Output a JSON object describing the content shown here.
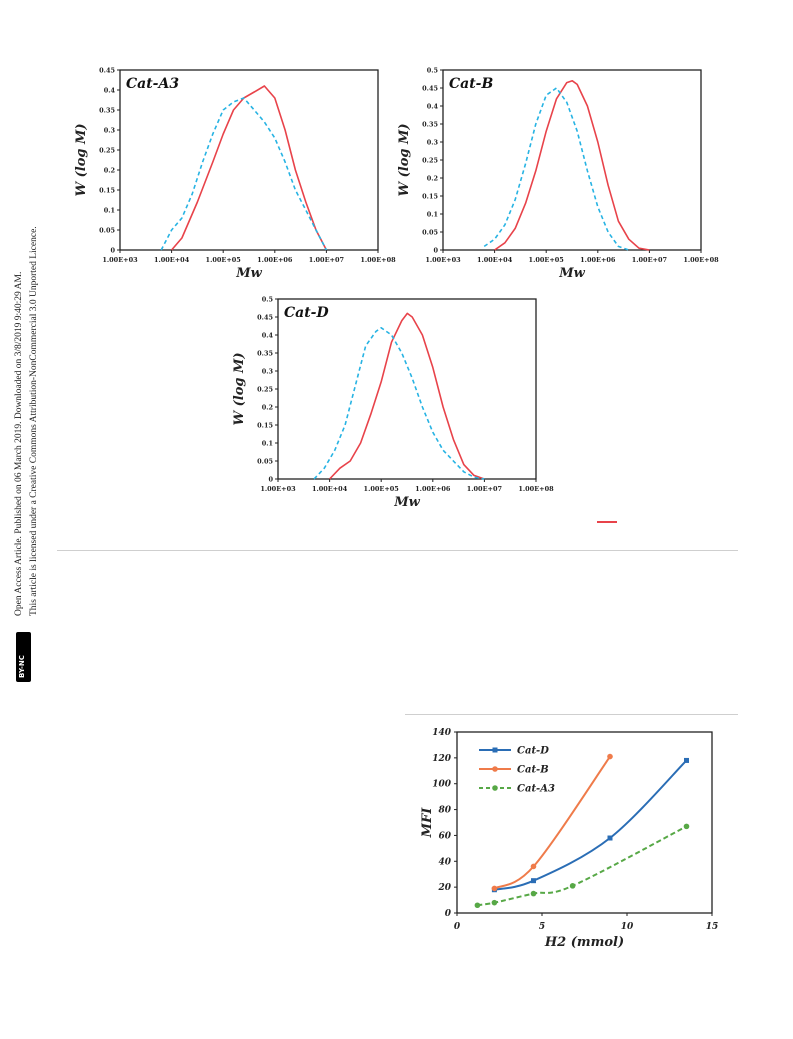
{
  "sidebar": {
    "line1": "Open Access Article. Published on 06 March 2019. Downloaded on 3/8/2019 9:40:29 AM.",
    "line2": "This article is licensed under a Creative Commons Attribution-NonCommercial 3.0 Unported Licence.",
    "badge": "BY-NC"
  },
  "colors": {
    "solid": "#e8434a",
    "dashed": "#27b3e3",
    "catD": "#2a6db5",
    "catB": "#ef7b4a",
    "catA3": "#57a846"
  },
  "chart_data": [
    {
      "type": "line",
      "title": "Cat-A3",
      "xlabel": "Mw",
      "ylabel": "W (log M)",
      "x_scale": "log",
      "x_tick_labels": [
        "1.00E+03",
        "1.00E+04",
        "1.00E+05",
        "1.00E+06",
        "1.00E+07",
        "1.00E+08"
      ],
      "y_tick_labels": [
        "0",
        "0.05",
        "0.1",
        "0.15",
        "0.2",
        "0.25",
        "0.3",
        "0.35",
        "0.4",
        "0.45"
      ],
      "xlim": [
        1000,
        100000000
      ],
      "ylim": [
        0,
        0.45
      ],
      "series": [
        {
          "style": "solid",
          "x": [
            10000,
            15800,
            31600,
            63000,
            100000,
            158000,
            251000,
            398000,
            630000,
            1000000,
            1580000,
            2510000,
            3980000,
            6300000,
            10000000
          ],
          "y": [
            0.0,
            0.03,
            0.12,
            0.22,
            0.29,
            0.35,
            0.38,
            0.395,
            0.41,
            0.38,
            0.3,
            0.2,
            0.12,
            0.05,
            0.0
          ]
        },
        {
          "style": "dashed",
          "x": [
            6300,
            10000,
            15800,
            25100,
            39800,
            63000,
            100000,
            158000,
            251000,
            398000,
            630000,
            1000000,
            1580000,
            2510000,
            3980000,
            6300000,
            10000000
          ],
          "y": [
            0.0,
            0.05,
            0.08,
            0.14,
            0.22,
            0.29,
            0.35,
            0.37,
            0.38,
            0.35,
            0.32,
            0.28,
            0.22,
            0.15,
            0.1,
            0.05,
            0.0
          ]
        }
      ]
    },
    {
      "type": "line",
      "title": "Cat-B",
      "xlabel": "Mw",
      "ylabel": "W (log M)",
      "x_scale": "log",
      "x_tick_labels": [
        "1.00E+03",
        "1.00E+04",
        "1.00E+05",
        "1.00E+06",
        "1.00E+07",
        "1.00E+08"
      ],
      "y_tick_labels": [
        "0",
        "0.05",
        "0.1",
        "0.15",
        "0.2",
        "0.25",
        "0.3",
        "0.35",
        "0.4",
        "0.45",
        "0.5"
      ],
      "xlim": [
        1000,
        100000000
      ],
      "ylim": [
        0,
        0.5
      ],
      "series": [
        {
          "style": "solid",
          "x": [
            10000,
            15800,
            25100,
            39800,
            63000,
            100000,
            158000,
            251000,
            320000,
            398000,
            630000,
            1000000,
            1580000,
            2510000,
            3980000,
            6300000,
            10000000
          ],
          "y": [
            0.0,
            0.02,
            0.06,
            0.13,
            0.22,
            0.33,
            0.42,
            0.465,
            0.47,
            0.46,
            0.4,
            0.3,
            0.18,
            0.08,
            0.03,
            0.005,
            0.0
          ]
        },
        {
          "style": "dashed",
          "x": [
            6300,
            10000,
            15800,
            25100,
            39800,
            63000,
            100000,
            158000,
            251000,
            398000,
            630000,
            1000000,
            1580000,
            2510000,
            3980000
          ],
          "y": [
            0.01,
            0.03,
            0.07,
            0.14,
            0.24,
            0.35,
            0.43,
            0.45,
            0.41,
            0.33,
            0.22,
            0.12,
            0.05,
            0.01,
            0.0
          ]
        }
      ]
    },
    {
      "type": "line",
      "title": "Cat-D",
      "xlabel": "Mw",
      "ylabel": "W (log M)",
      "x_scale": "log",
      "x_tick_labels": [
        "1.00E+03",
        "1.00E+04",
        "1.00E+05",
        "1.00E+06",
        "1.00E+07",
        "1.00E+08"
      ],
      "y_tick_labels": [
        "0",
        "0.05",
        "0.1",
        "0.15",
        "0.2",
        "0.25",
        "0.3",
        "0.35",
        "0.4",
        "0.45",
        "0.5"
      ],
      "xlim": [
        1000,
        100000000
      ],
      "ylim": [
        0,
        0.5
      ],
      "series": [
        {
          "style": "solid",
          "x": [
            10000,
            15800,
            25100,
            39800,
            63000,
            100000,
            158000,
            251000,
            320000,
            398000,
            630000,
            1000000,
            1580000,
            2510000,
            3980000,
            6300000,
            10000000
          ],
          "y": [
            0.0,
            0.03,
            0.05,
            0.1,
            0.18,
            0.27,
            0.38,
            0.44,
            0.46,
            0.45,
            0.4,
            0.31,
            0.2,
            0.11,
            0.04,
            0.01,
            0.0
          ]
        },
        {
          "style": "dashed",
          "x": [
            5000,
            7900,
            12600,
            20000,
            31600,
            50100,
            79400,
            100000,
            158000,
            251000,
            398000,
            630000,
            1000000,
            1580000,
            2510000,
            3980000,
            6300000,
            10000000
          ],
          "y": [
            0.0,
            0.03,
            0.08,
            0.15,
            0.26,
            0.37,
            0.41,
            0.42,
            0.4,
            0.35,
            0.28,
            0.2,
            0.13,
            0.08,
            0.05,
            0.02,
            0.005,
            0.0
          ]
        }
      ]
    },
    {
      "type": "line",
      "xlabel": "H2 (mmol)",
      "ylabel": "MFI",
      "x_tick_labels": [
        "0",
        "5",
        "10",
        "15"
      ],
      "y_tick_labels": [
        "0",
        "20",
        "40",
        "60",
        "80",
        "100",
        "120",
        "140"
      ],
      "xlim": [
        0,
        15
      ],
      "ylim": [
        0,
        140
      ],
      "legend_position": "top-left",
      "series": [
        {
          "name": "Cat-D",
          "style": "solid",
          "color": "#2a6db5",
          "marker": "square",
          "x": [
            2.2,
            4.5,
            9.0,
            13.5
          ],
          "y": [
            18,
            25,
            58,
            118
          ]
        },
        {
          "name": "Cat-B",
          "style": "solid",
          "color": "#ef7b4a",
          "marker": "circle",
          "x": [
            2.2,
            4.5,
            9.0
          ],
          "y": [
            19,
            36,
            121
          ]
        },
        {
          "name": "Cat-A3",
          "style": "dashed",
          "color": "#57a846",
          "marker": "circle",
          "x": [
            1.2,
            2.2,
            4.5,
            6.8,
            13.5
          ],
          "y": [
            6,
            8,
            15,
            21,
            67
          ]
        }
      ]
    }
  ]
}
